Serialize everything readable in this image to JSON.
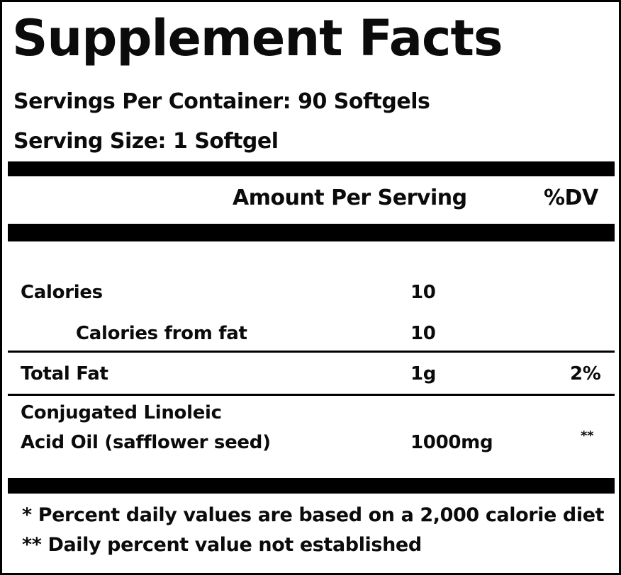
{
  "panel": {
    "title": "Supplement Facts",
    "servings_per_container": "Servings Per Container: 90 Softgels",
    "serving_size": "Serving Size: 1 Softgel"
  },
  "header": {
    "amount": "Amount Per Serving",
    "dv": "%DV"
  },
  "rows": [
    {
      "name": "Calories",
      "amount": "10",
      "dv": ""
    },
    {
      "name": "Calories from fat",
      "amount": "10",
      "dv": ""
    },
    {
      "name": "Total Fat",
      "amount": "1g",
      "dv": "2%"
    },
    {
      "name_line1": "Conjugated Linoleic",
      "name_line2": "Acid Oil (safflower seed)",
      "amount": "1000mg",
      "dv": "**"
    }
  ],
  "footnotes": [
    "* Percent daily values are based on a 2,000 calorie diet",
    "** Daily percent value not established"
  ],
  "colors": {
    "ink": "#000000",
    "background": "#ffffff"
  }
}
